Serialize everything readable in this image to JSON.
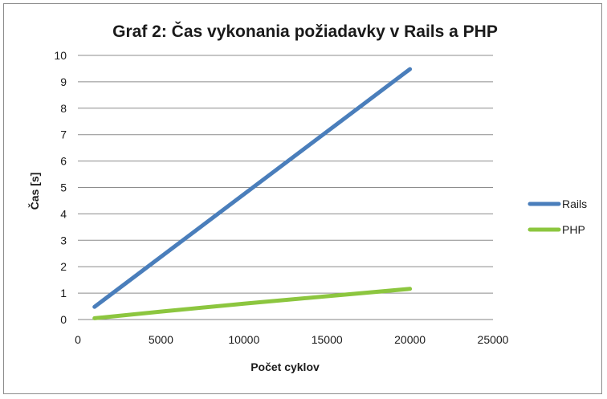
{
  "chart_data": {
    "type": "line",
    "title": "Graf 2: Čas vykonania požiadavky v Rails a PHP",
    "xlabel": "Počet cyklov",
    "ylabel": "Čas [s]",
    "xlim": [
      0,
      25000
    ],
    "ylim": [
      0,
      10
    ],
    "xticks": [
      0,
      5000,
      10000,
      15000,
      20000,
      25000
    ],
    "yticks": [
      0,
      1,
      2,
      3,
      4,
      5,
      6,
      7,
      8,
      9,
      10
    ],
    "grid": "horizontal",
    "legend_position": "right",
    "series": [
      {
        "name": "Rails",
        "color": "#4a7ebb",
        "points": [
          [
            1000,
            0.48
          ],
          [
            20000,
            9.48
          ]
        ]
      },
      {
        "name": "PHP",
        "color": "#8cc63f",
        "points": [
          [
            1000,
            0.05
          ],
          [
            5000,
            0.3
          ],
          [
            10000,
            0.6
          ],
          [
            15000,
            0.88
          ],
          [
            20000,
            1.16
          ]
        ]
      }
    ]
  }
}
